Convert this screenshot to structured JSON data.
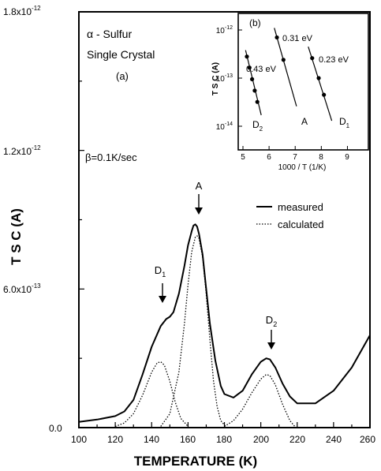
{
  "chart_data": [
    {
      "type": "line",
      "xlabel": "TEMPERATURE (K)",
      "ylabel": "T S C (A)",
      "xlim": [
        100,
        260
      ],
      "ylim": [
        0,
        1.8e-12
      ],
      "x_ticks": [
        "100",
        "120",
        "140",
        "160",
        "180",
        "200",
        "220",
        "240",
        "260"
      ],
      "y_ticks": [
        "0.0",
        "6.0x10",
        "1.2x10",
        "1.8x10"
      ],
      "y_tick_exponents": [
        "",
        "-13",
        "-12",
        "-12"
      ],
      "annotations": {
        "sample_line1": "α - Sulfur",
        "sample_line2": "Single Crystal",
        "panel": "(a)",
        "beta": "β=0.1K/sec",
        "peak_A": "A",
        "peak_D1": "D",
        "peak_D1_sub": "1",
        "peak_D2": "D",
        "peak_D2_sub": "2"
      },
      "legend_position": "upper-right",
      "series": [
        {
          "name": "measured",
          "style": "solid",
          "x": [
            100,
            110,
            120,
            125,
            130,
            135,
            140,
            145,
            148,
            150,
            152,
            155,
            158,
            160,
            162,
            163,
            164,
            165,
            166,
            168,
            170,
            172,
            175,
            178,
            180,
            185,
            190,
            195,
            200,
            203,
            205,
            208,
            212,
            216,
            220,
            230,
            240,
            250,
            260
          ],
          "y": [
            2.5e-14,
            3.5e-14,
            5e-14,
            7e-14,
            1.2e-13,
            2.3e-13,
            3.5e-13,
            4.4e-13,
            4.7e-13,
            4.8e-13,
            5e-13,
            5.8e-13,
            7e-13,
            7.9e-13,
            8.5e-13,
            8.75e-13,
            8.8e-13,
            8.7e-13,
            8.4e-13,
            7.5e-13,
            6e-13,
            4.5e-13,
            2.9e-13,
            1.8e-13,
            1.45e-13,
            1.3e-13,
            1.6e-13,
            2.3e-13,
            2.85e-13,
            3e-13,
            2.95e-13,
            2.6e-13,
            1.9e-13,
            1.35e-13,
            1.05e-13,
            1.05e-13,
            1.6e-13,
            2.6e-13,
            4e-13
          ]
        },
        {
          "name": "calculated",
          "style": "dotted",
          "x": [
            120,
            125,
            130,
            135,
            140,
            143,
            145,
            147,
            150,
            153,
            156,
            160
          ],
          "y": [
            5e-15,
            2e-14,
            6e-14,
            1.4e-13,
            2.4e-13,
            2.8e-13,
            2.85e-13,
            2.7e-13,
            2e-13,
            1.1e-13,
            4e-14,
            5e-15
          ]
        },
        {
          "name": "calculated",
          "style": "dotted",
          "x": [
            145,
            150,
            155,
            158,
            160,
            162,
            164,
            165,
            166,
            168,
            170,
            172,
            174,
            176,
            178,
            181
          ],
          "y": [
            5e-15,
            6e-14,
            2.4e-13,
            4.5e-13,
            6.2e-13,
            7.6e-13,
            8.25e-13,
            8.3e-13,
            8.2e-13,
            7.4e-13,
            5.8e-13,
            3.8e-13,
            2e-13,
            9e-14,
            3e-14,
            2e-15
          ]
        },
        {
          "name": "calculated",
          "style": "dotted",
          "x": [
            180,
            185,
            190,
            195,
            200,
            203,
            205,
            208,
            212,
            216,
            219
          ],
          "y": [
            5e-15,
            3e-14,
            8e-14,
            1.5e-13,
            2.1e-13,
            2.3e-13,
            2.25e-13,
            1.85e-13,
            1e-13,
            3e-14,
            2e-15
          ]
        }
      ]
    },
    {
      "type": "scatter",
      "title": "(b)",
      "xlabel": "1000 / T (1/K)",
      "ylabel": "T S C (A)",
      "xlim": [
        5,
        9.5
      ],
      "ylim": [
        1e-14,
        3e-12
      ],
      "yscale": "log",
      "x_ticks": [
        "5",
        "6",
        "7",
        "8",
        "9"
      ],
      "y_ticks": [
        "10",
        "10",
        "10"
      ],
      "y_tick_exponents": [
        "-12",
        "-13",
        "-14"
      ],
      "series": [
        {
          "name": "D",
          "name_sub": "2",
          "energy": "0.43 eV",
          "points_x": [
            5.15,
            5.25,
            5.35,
            5.45,
            5.55
          ],
          "points_y": [
            2.8e-13,
            1.65e-13,
            9.5e-14,
            5.5e-14,
            3.2e-14
          ],
          "fit_x": [
            5.1,
            5.7
          ],
          "fit_y": [
            3.8e-13,
            1.7e-14
          ]
        },
        {
          "name": "A",
          "energy": "0.31 eV",
          "points_x": [
            6.3,
            6.55
          ],
          "points_y": [
            7e-13,
            2.4e-13
          ],
          "fit_x": [
            6.2,
            7.05
          ],
          "fit_y": [
            1.1e-12,
            2.6e-14
          ]
        },
        {
          "name": "D",
          "name_sub": "1",
          "energy": "0.23 eV",
          "points_x": [
            7.65,
            7.9,
            8.1
          ],
          "points_y": [
            2.6e-13,
            1e-13,
            4.5e-14
          ],
          "fit_x": [
            7.5,
            8.4
          ],
          "fit_y": [
            4.5e-13,
            1.3e-14
          ]
        }
      ]
    }
  ],
  "legend": {
    "measured": "measured",
    "calculated": "calculated"
  }
}
